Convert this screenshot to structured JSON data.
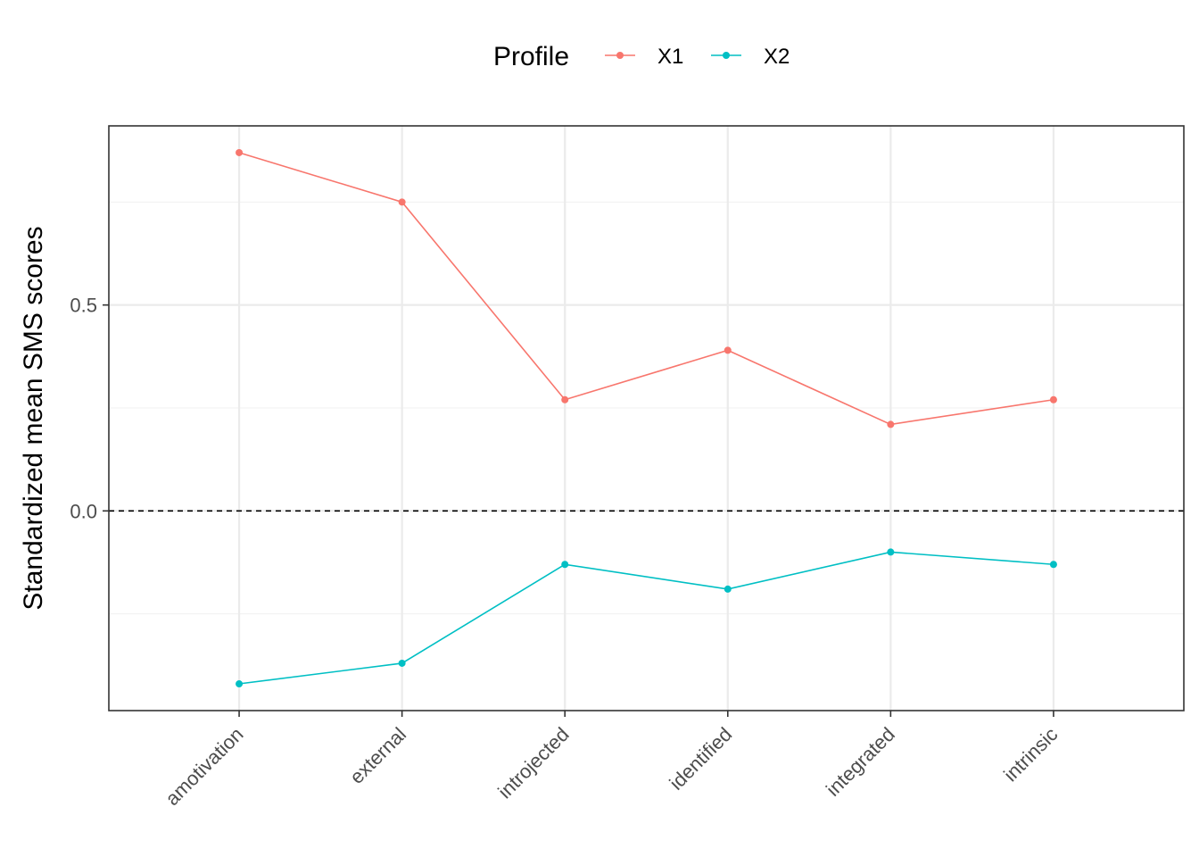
{
  "chart_data": {
    "type": "line",
    "categories": [
      "amotivation",
      "external",
      "introjected",
      "identified",
      "integrated",
      "intrinsic"
    ],
    "series": [
      {
        "name": "X1",
        "color": "#F8766D",
        "values": [
          0.87,
          0.75,
          0.27,
          0.39,
          0.21,
          0.27
        ]
      },
      {
        "name": "X2",
        "color": "#00BFC4",
        "values": [
          -0.42,
          -0.37,
          -0.13,
          -0.19,
          -0.1,
          -0.13
        ]
      }
    ],
    "xlabel": "",
    "ylabel": "Standardized mean SMS scores",
    "ylim": [
      -0.485,
      0.935
    ],
    "yticks": [
      0.0,
      0.5
    ],
    "ytick_labels": [
      "0.0",
      "0.5"
    ],
    "minor_yticks": [
      -0.25,
      0.25,
      0.75
    ],
    "reference_line": {
      "y": 0,
      "style": "dashed"
    },
    "legend": {
      "title": "Profile",
      "position": "top"
    },
    "grid": true,
    "theme": "bw"
  }
}
